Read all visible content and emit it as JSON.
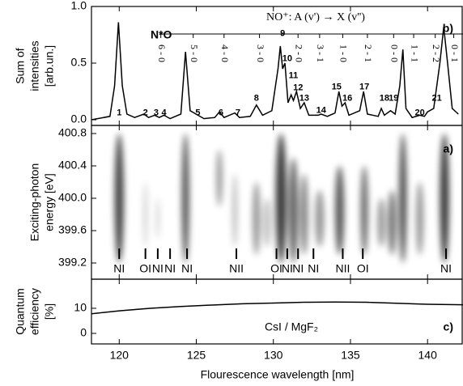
{
  "chart_data": [
    {
      "type": "line",
      "panel_label": "b)",
      "y_label": [
        "Sum of",
        "intensities",
        "[arb.un.]"
      ],
      "xlim": [
        118.2,
        142.3
      ],
      "ylim": [
        -0.05,
        1.0
      ],
      "yticks": [
        {
          "value": 0,
          "label": "0.0"
        },
        0.5,
        {
          "value": 1,
          "label": "1.0"
        }
      ],
      "color": "#000000",
      "x": [
        118.2,
        119.4,
        119.7,
        119.95,
        120.2,
        120.5,
        121.0,
        121.6,
        121.9,
        122.3,
        122.6,
        122.9,
        123.3,
        124.0,
        124.3,
        124.6,
        125.5,
        126.2,
        126.5,
        126.8,
        127.5,
        127.8,
        128.5,
        128.9,
        129.3,
        129.9,
        130.3,
        130.45,
        130.6,
        130.75,
        130.95,
        131.15,
        131.3,
        131.5,
        131.75,
        132.0,
        132.3,
        132.9,
        133.1,
        133.5,
        134.0,
        134.25,
        134.45,
        134.65,
        134.9,
        135.6,
        135.85,
        136.1,
        136.8,
        137.0,
        137.2,
        137.6,
        137.9,
        138.2,
        138.4,
        138.6,
        139.0,
        139.5,
        139.8,
        140.0,
        140.4,
        140.8,
        141.05,
        141.3,
        141.6,
        142.0
      ],
      "values": [
        0.0,
        0.03,
        0.3,
        0.86,
        0.3,
        0.05,
        0.02,
        0.05,
        0.02,
        0.04,
        0.02,
        0.04,
        0.01,
        0.05,
        0.6,
        0.08,
        0.01,
        0.02,
        0.07,
        0.02,
        0.06,
        0.02,
        0.03,
        0.13,
        0.04,
        0.08,
        0.45,
        0.65,
        0.45,
        0.5,
        0.15,
        0.22,
        0.17,
        0.25,
        0.1,
        0.15,
        0.04,
        0.04,
        0.05,
        0.03,
        0.06,
        0.25,
        0.12,
        0.15,
        0.04,
        0.08,
        0.25,
        0.05,
        0.03,
        0.1,
        0.04,
        0.08,
        0.05,
        0.3,
        0.62,
        0.1,
        0.02,
        0.04,
        0.03,
        0.07,
        0.1,
        0.5,
        0.82,
        0.5,
        0.1,
        0.05
      ],
      "molecule_label": "N*O",
      "band_title": "NO⁺: A (v') → X (v'')",
      "bands": [
        {
          "label": "6 - 0",
          "x": 122.7
        },
        {
          "label": "5 - 0",
          "x": 124.8
        },
        {
          "label": "4 - 0",
          "x": 126.8
        },
        {
          "label": "3 - 0",
          "x": 129.1
        },
        {
          "label": "2 - 0",
          "x": 131.6
        },
        {
          "label": "3 - 1",
          "x": 133.0
        },
        {
          "label": "1 - 0",
          "x": 134.5
        },
        {
          "label": "2 - 1",
          "x": 136.1
        },
        {
          "label": "0 - 0",
          "x": 137.8
        },
        {
          "label": "1 - 1",
          "x": 139.1
        },
        {
          "label": "2 - 2",
          "x": 140.5
        },
        {
          "label": "0 - 1",
          "x": 141.7
        }
      ],
      "peak_labels": [
        {
          "label": "1",
          "x": 120.0,
          "y": 0.06
        },
        {
          "label": "2",
          "x": 121.7,
          "y": 0.06
        },
        {
          "label": "3",
          "x": 122.4,
          "y": 0.06
        },
        {
          "label": "4",
          "x": 122.9,
          "y": 0.06
        },
        {
          "label": "5",
          "x": 125.1,
          "y": 0.06
        },
        {
          "label": "6",
          "x": 126.6,
          "y": 0.06
        },
        {
          "label": "7",
          "x": 127.7,
          "y": 0.06
        },
        {
          "label": "8",
          "x": 128.9,
          "y": 0.19
        },
        {
          "label": "9",
          "x": 130.6,
          "y": 0.76
        },
        {
          "label": "10",
          "x": 130.9,
          "y": 0.54
        },
        {
          "label": "11",
          "x": 131.3,
          "y": 0.39
        },
        {
          "label": "12",
          "x": 131.6,
          "y": 0.28
        },
        {
          "label": "13",
          "x": 132.0,
          "y": 0.19
        },
        {
          "label": "14",
          "x": 133.1,
          "y": 0.08
        },
        {
          "label": "15",
          "x": 134.1,
          "y": 0.29
        },
        {
          "label": "16",
          "x": 134.8,
          "y": 0.19
        },
        {
          "label": "17",
          "x": 135.9,
          "y": 0.29
        },
        {
          "label": "18",
          "x": 137.2,
          "y": 0.19
        },
        {
          "label": "19",
          "x": 137.8,
          "y": 0.19
        },
        {
          "label": "20",
          "x": 139.5,
          "y": 0.06
        },
        {
          "label": "21",
          "x": 140.6,
          "y": 0.19
        }
      ]
    },
    {
      "type": "heatmap",
      "panel_label": "a)",
      "y_label": [
        "Exciting-photon",
        "energy [eV]"
      ],
      "xlim": [
        118.2,
        142.3
      ],
      "ylim": [
        399.0,
        400.9
      ],
      "yticks": [
        399.2,
        399.6,
        {
          "value": 400,
          "label": "400.0"
        },
        400.4,
        400.8
      ],
      "streaks": [
        {
          "x": 120.0,
          "e_range": [
            399.2,
            400.8
          ],
          "width": 0.6,
          "intensity": 0.9
        },
        {
          "x": 121.7,
          "e_range": [
            399.4,
            400.2
          ],
          "width": 0.2,
          "intensity": 0.3
        },
        {
          "x": 122.5,
          "e_range": [
            399.5,
            400.0
          ],
          "width": 0.2,
          "intensity": 0.25
        },
        {
          "x": 124.3,
          "e_range": [
            399.2,
            400.8
          ],
          "width": 0.5,
          "intensity": 0.8
        },
        {
          "x": 126.5,
          "e_range": [
            399.9,
            400.6
          ],
          "width": 0.4,
          "intensity": 0.5
        },
        {
          "x": 127.5,
          "e_range": [
            399.4,
            400.3
          ],
          "width": 0.3,
          "intensity": 0.35
        },
        {
          "x": 128.9,
          "e_range": [
            399.3,
            400.2
          ],
          "width": 0.5,
          "intensity": 0.5
        },
        {
          "x": 129.6,
          "e_range": [
            399.4,
            400.0
          ],
          "width": 0.5,
          "intensity": 0.3
        },
        {
          "x": 130.5,
          "e_range": [
            399.2,
            400.8
          ],
          "width": 0.7,
          "intensity": 0.95
        },
        {
          "x": 131.3,
          "e_range": [
            399.2,
            400.5
          ],
          "width": 0.6,
          "intensity": 0.75
        },
        {
          "x": 132.0,
          "e_range": [
            399.3,
            400.3
          ],
          "width": 0.5,
          "intensity": 0.6
        },
        {
          "x": 133.0,
          "e_range": [
            399.4,
            400.1
          ],
          "width": 0.6,
          "intensity": 0.5
        },
        {
          "x": 134.3,
          "e_range": [
            399.3,
            400.4
          ],
          "width": 0.6,
          "intensity": 0.8
        },
        {
          "x": 135.9,
          "e_range": [
            399.3,
            400.4
          ],
          "width": 0.5,
          "intensity": 0.7
        },
        {
          "x": 137.0,
          "e_range": [
            399.4,
            400.0
          ],
          "width": 0.5,
          "intensity": 0.5
        },
        {
          "x": 137.7,
          "e_range": [
            399.3,
            400.1
          ],
          "width": 0.5,
          "intensity": 0.7
        },
        {
          "x": 138.4,
          "e_range": [
            399.2,
            400.8
          ],
          "width": 0.5,
          "intensity": 0.85
        },
        {
          "x": 139.5,
          "e_range": [
            399.3,
            400.2
          ],
          "width": 0.5,
          "intensity": 0.5
        },
        {
          "x": 141.1,
          "e_range": [
            399.2,
            400.8
          ],
          "width": 0.6,
          "intensity": 0.95
        }
      ],
      "line_labels": [
        {
          "label": "NI",
          "x": 120.0
        },
        {
          "label": "OI",
          "x": 121.7
        },
        {
          "label": "NI",
          "x": 122.5
        },
        {
          "label": "NI",
          "x": 123.3
        },
        {
          "label": "NI",
          "x": 124.4
        },
        {
          "label": "NII",
          "x": 127.6
        },
        {
          "label": "OI",
          "x": 130.2
        },
        {
          "label": "NI",
          "x": 130.9
        },
        {
          "label": "NI",
          "x": 131.6
        },
        {
          "label": "NI",
          "x": 132.6
        },
        {
          "label": "NII",
          "x": 134.5
        },
        {
          "label": "OI",
          "x": 135.8
        },
        {
          "label": "NI",
          "x": 141.2
        }
      ]
    },
    {
      "type": "line",
      "panel_label": "c)",
      "y_label": [
        "Quantum",
        "efficiency",
        "[%]"
      ],
      "xlim": [
        118.2,
        142.3
      ],
      "ylim": [
        -4.2,
        21.6
      ],
      "yticks": [
        0,
        10
      ],
      "xticks": [
        120,
        125,
        130,
        135,
        140
      ],
      "x_label": "Flourescence wavelength [nm]",
      "color": "#000000",
      "x": [
        118.2,
        120,
        122,
        124,
        126,
        128,
        130,
        132,
        134,
        136,
        138,
        140,
        142.3
      ],
      "values": [
        7.8,
        9.0,
        10.0,
        10.7,
        11.3,
        11.8,
        12.1,
        12.4,
        12.5,
        12.4,
        12.0,
        11.6,
        11.4
      ],
      "curve_label": "CsI / MgF₂"
    }
  ]
}
